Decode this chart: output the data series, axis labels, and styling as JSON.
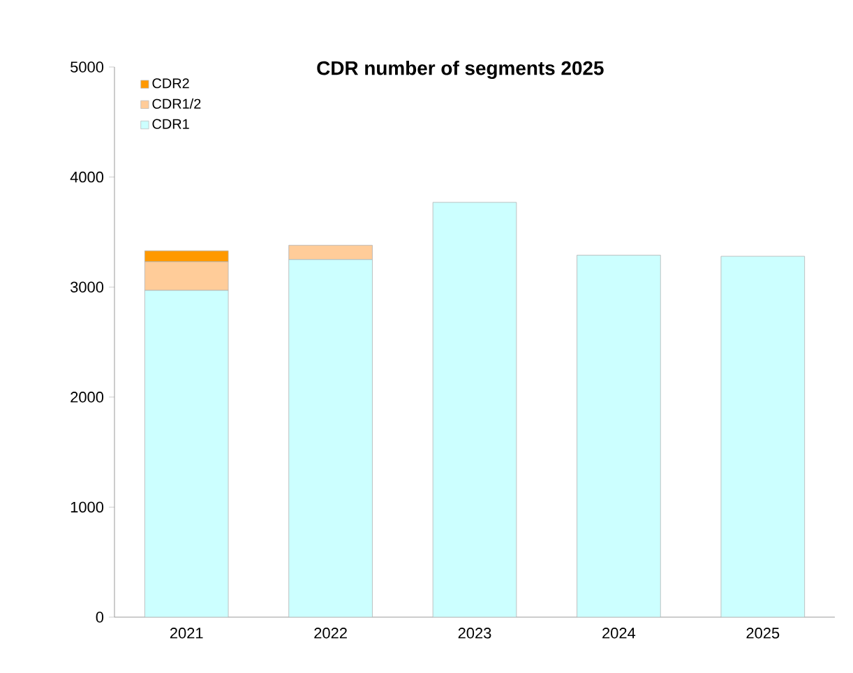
{
  "chart_data": {
    "type": "bar",
    "stacked": true,
    "title": "CDR number of segments 2025",
    "categories": [
      "2021",
      "2022",
      "2023",
      "2024",
      "2025"
    ],
    "series": [
      {
        "name": "CDR1",
        "color": "#ccffff",
        "values": [
          2970,
          3250,
          3770,
          3290,
          3280
        ]
      },
      {
        "name": "CDR1/2",
        "color": "#ffcc99",
        "values": [
          260,
          130,
          null,
          null,
          null
        ]
      },
      {
        "name": "CDR2",
        "color": "#ff9900",
        "values": [
          100,
          null,
          null,
          null,
          null
        ]
      }
    ],
    "ylim": [
      0,
      5000
    ],
    "yticks": [
      0,
      1000,
      2000,
      3000,
      4000,
      5000
    ],
    "legend": "top left"
  }
}
